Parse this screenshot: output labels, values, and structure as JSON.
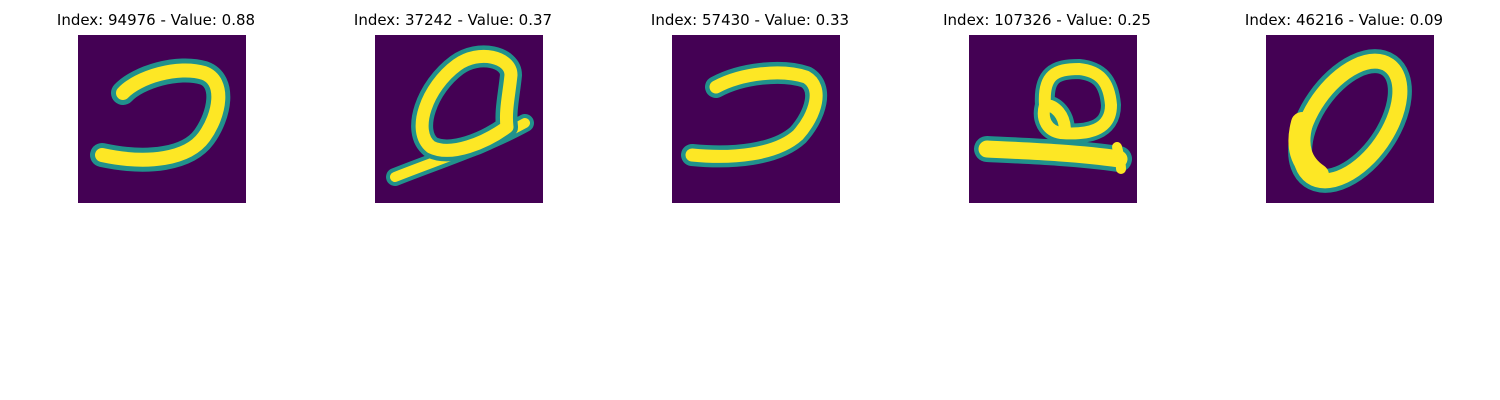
{
  "figure": {
    "colors": {
      "background": "#440154",
      "edge": "#21918c",
      "stroke": "#fde725"
    },
    "panels": [
      {
        "title": "Index: 94976 - Value: 0.88",
        "icon": "handwritten-digit-2-like-hook"
      },
      {
        "title": "Index: 37242 - Value: 0.37",
        "icon": "handwritten-digit-looped-ascender"
      },
      {
        "title": "Index: 57430 - Value: 0.33",
        "icon": "handwritten-digit-2-like-hook"
      },
      {
        "title": "Index: 107326 - Value: 0.25",
        "icon": "handwritten-digit-loop-on-bar"
      },
      {
        "title": "Index: 46216 - Value: 0.09",
        "icon": "handwritten-digit-0"
      }
    ]
  }
}
